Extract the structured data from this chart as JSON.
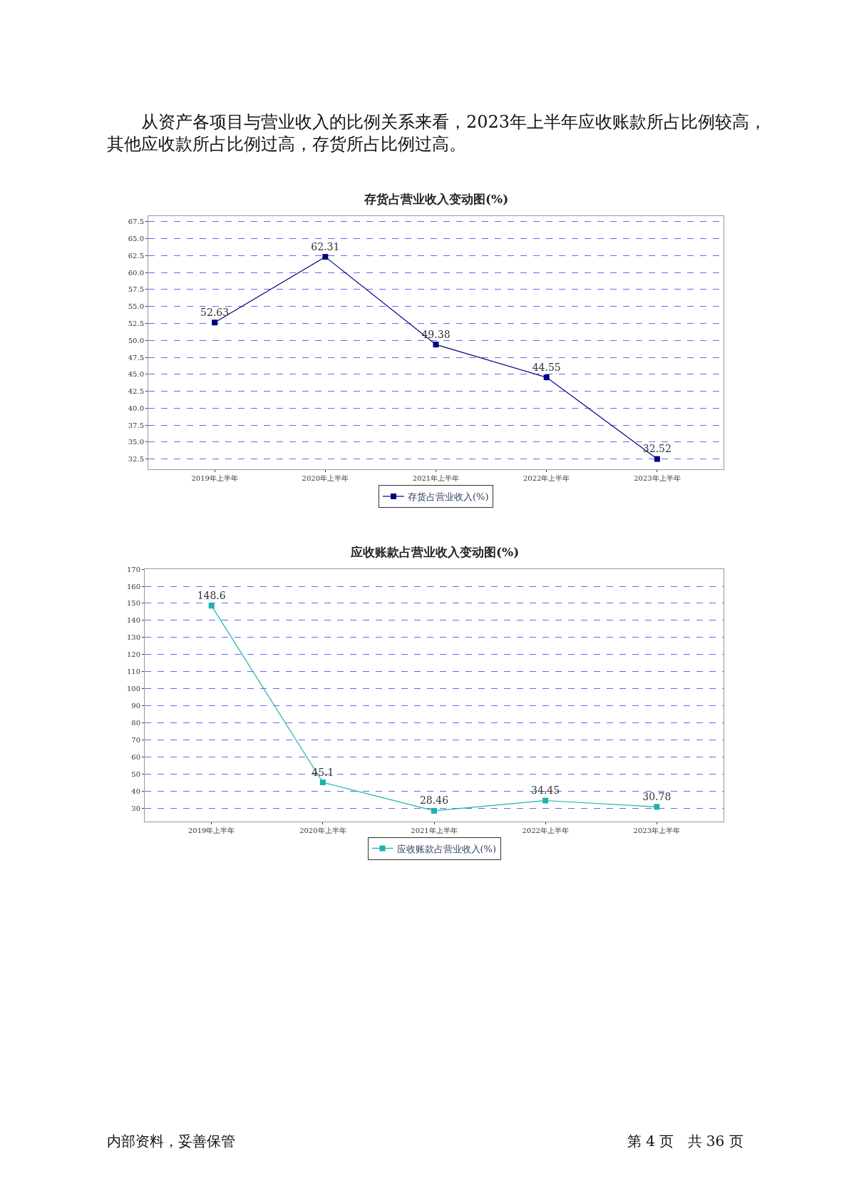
{
  "chart_data": [
    {
      "type": "line",
      "title": "存货占营业收入变动图(%)",
      "annotations": [
        "从资产各项目与营业收入的比例关系来看，2023年上半年应收账款所占比例较高，其他应收款所占比例过高，存货所占比例过高。"
      ],
      "categories": [
        "2019年上半年",
        "2020年上半年",
        "2021年上半年",
        "2022年上半年",
        "2023年上半年"
      ],
      "series": [
        {
          "name": "存货占营业收入(%)",
          "color": "#000080",
          "values": [
            52.63,
            62.31,
            49.38,
            44.55,
            32.52
          ]
        }
      ],
      "ylim": [
        31.0,
        68.3
      ],
      "yticks": [
        {
          "value": 32.5,
          "label": "32.5"
        },
        {
          "value": 35,
          "label": "35.0"
        },
        {
          "value": 37.5,
          "label": "37.5"
        },
        {
          "value": 40,
          "label": "40.0"
        },
        {
          "value": 42.5,
          "label": "42.5"
        },
        {
          "value": 45,
          "label": "45.0"
        },
        {
          "value": 47.5,
          "label": "47.5"
        },
        {
          "value": 50,
          "label": "50.0"
        },
        {
          "value": 52.5,
          "label": "52.5"
        },
        {
          "value": 55,
          "label": "55.0"
        },
        {
          "value": 57.5,
          "label": "57.5"
        },
        {
          "value": 60,
          "label": "60.0"
        },
        {
          "value": 62.5,
          "label": "62.5"
        },
        {
          "value": 65,
          "label": "65.0"
        },
        {
          "value": 67.5,
          "label": "67.5"
        }
      ],
      "grid": "y",
      "legend": "bottom",
      "marker": "square",
      "line_style": "solid",
      "data_labels": true
    },
    {
      "type": "line",
      "title": "应收账款占营业收入变动图(%)",
      "annotations": [
        "内部资料，妥善保管",
        "第 4 页   共 36 页"
      ],
      "categories": [
        "2019年上半年",
        "2020年上半年",
        "2021年上半年",
        "2022年上半年",
        "2023年上半年"
      ],
      "series": [
        {
          "name": "应收账款占营业收入(%)",
          "color": "#20b2aa",
          "values": [
            148.6,
            45.1,
            28.46,
            34.45,
            30.78
          ]
        }
      ],
      "ylim": [
        22.3,
        170.2
      ],
      "yticks": [
        30,
        40,
        50,
        60,
        70,
        80,
        90,
        100,
        110,
        120,
        130,
        140,
        150,
        160,
        170
      ],
      "grid": "y",
      "legend": "bottom",
      "marker": "square",
      "line_style": "solid",
      "data_labels": true
    }
  ]
}
